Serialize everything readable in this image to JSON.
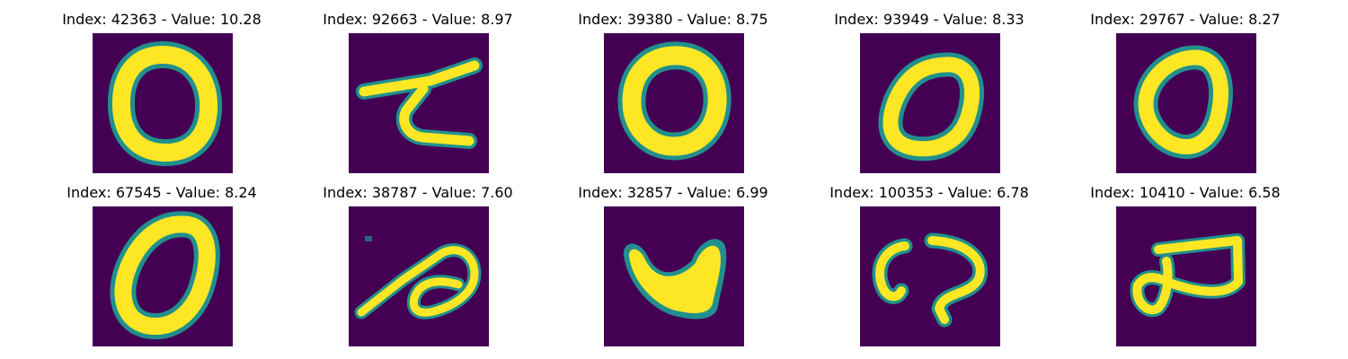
{
  "figure": {
    "background_color": "#ffffff",
    "colormap": "viridis",
    "colors": {
      "low": "#440154",
      "mid": "#21908d",
      "high": "#fde725"
    }
  },
  "panels": [
    {
      "title": "Index: 42363 - Value: 10.28",
      "index": 42363,
      "value": 10.28
    },
    {
      "title": "Index: 92663 - Value: 8.97",
      "index": 92663,
      "value": 8.97
    },
    {
      "title": "Index: 39380 - Value: 8.75",
      "index": 39380,
      "value": 8.75
    },
    {
      "title": "Index: 93949 - Value: 8.33",
      "index": 93949,
      "value": 8.33
    },
    {
      "title": "Index: 29767 - Value: 8.27",
      "index": 29767,
      "value": 8.27
    },
    {
      "title": "Index: 67545 - Value: 8.24",
      "index": 67545,
      "value": 8.24
    },
    {
      "title": "Index: 38787 - Value: 7.60",
      "index": 38787,
      "value": 7.6
    },
    {
      "title": "Index: 32857 - Value: 6.99",
      "index": 32857,
      "value": 6.99
    },
    {
      "title": "Index: 100353 - Value: 6.78",
      "index": 100353,
      "value": 6.78
    },
    {
      "title": "Index: 10410 - Value: 6.58",
      "index": 10410,
      "value": 6.58
    }
  ]
}
